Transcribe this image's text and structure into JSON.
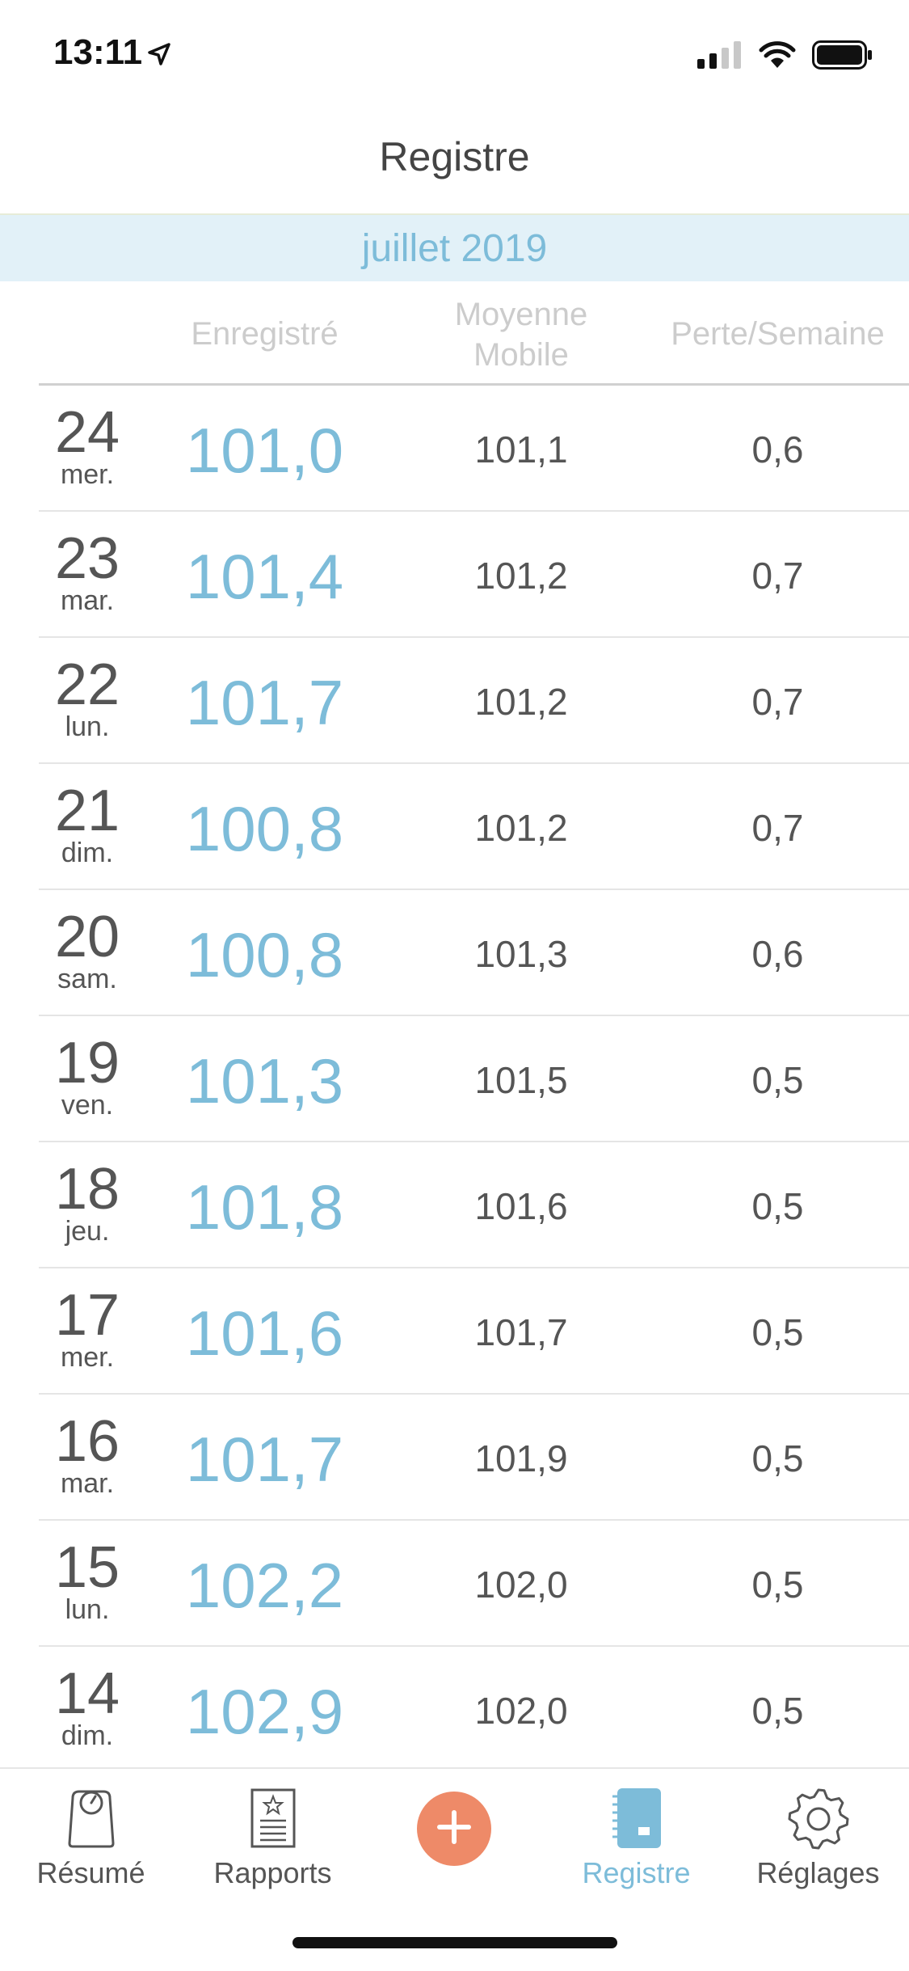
{
  "status_bar": {
    "time": "13:11"
  },
  "nav": {
    "title": "Registre"
  },
  "month": "juillet 2019",
  "columns": {
    "recorded": "Enregistré",
    "average_line1": "Moyenne",
    "average_line2": "Mobile",
    "loss": "Perte/Semaine"
  },
  "rows": [
    {
      "day": "24",
      "weekday": "mer.",
      "recorded": "101,0",
      "average": "101,1",
      "loss": "0,6"
    },
    {
      "day": "23",
      "weekday": "mar.",
      "recorded": "101,4",
      "average": "101,2",
      "loss": "0,7"
    },
    {
      "day": "22",
      "weekday": "lun.",
      "recorded": "101,7",
      "average": "101,2",
      "loss": "0,7"
    },
    {
      "day": "21",
      "weekday": "dim.",
      "recorded": "100,8",
      "average": "101,2",
      "loss": "0,7"
    },
    {
      "day": "20",
      "weekday": "sam.",
      "recorded": "100,8",
      "average": "101,3",
      "loss": "0,6"
    },
    {
      "day": "19",
      "weekday": "ven.",
      "recorded": "101,3",
      "average": "101,5",
      "loss": "0,5"
    },
    {
      "day": "18",
      "weekday": "jeu.",
      "recorded": "101,8",
      "average": "101,6",
      "loss": "0,5"
    },
    {
      "day": "17",
      "weekday": "mer.",
      "recorded": "101,6",
      "average": "101,7",
      "loss": "0,5"
    },
    {
      "day": "16",
      "weekday": "mar.",
      "recorded": "101,7",
      "average": "101,9",
      "loss": "0,5"
    },
    {
      "day": "15",
      "weekday": "lun.",
      "recorded": "102,2",
      "average": "102,0",
      "loss": "0,5"
    },
    {
      "day": "14",
      "weekday": "dim.",
      "recorded": "102,9",
      "average": "102,0",
      "loss": "0,5"
    }
  ],
  "tabs": [
    {
      "label": "Résumé",
      "icon": "scale-icon",
      "active": false
    },
    {
      "label": "Rapports",
      "icon": "report-icon",
      "active": false
    },
    {
      "label": "",
      "icon": "plus-icon",
      "active": false
    },
    {
      "label": "Registre",
      "icon": "notebook-icon",
      "active": true
    },
    {
      "label": "Réglages",
      "icon": "gear-icon",
      "active": false
    }
  ],
  "colors": {
    "accent": "#7dbcd9",
    "add_button": "#ee8a68",
    "month_band": "#e2f1f8"
  }
}
